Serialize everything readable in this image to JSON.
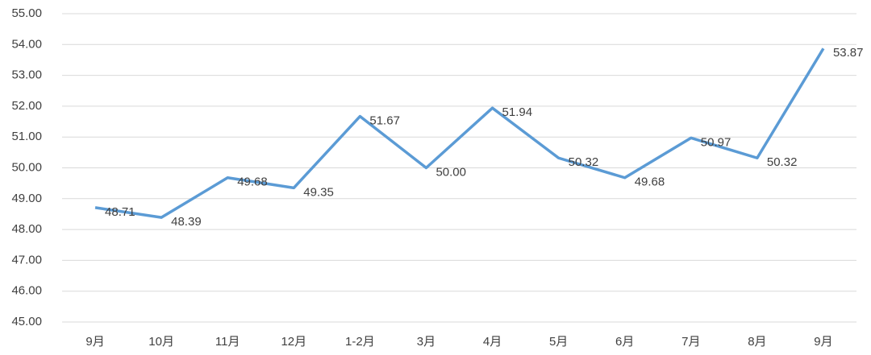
{
  "chart_data": {
    "type": "line",
    "categories": [
      "9月",
      "10月",
      "11月",
      "12月",
      "1-2月",
      "3月",
      "4月",
      "5月",
      "6月",
      "7月",
      "8月",
      "9月"
    ],
    "series": [
      {
        "color": "#5b9bd5",
        "values": [
          48.71,
          48.39,
          49.68,
          49.35,
          51.67,
          50.0,
          51.94,
          50.32,
          49.68,
          50.97,
          50.32,
          53.87
        ],
        "value_labels": [
          "48.71",
          "48.39",
          "49.68",
          "49.35",
          "51.67",
          "50.00",
          "51.94",
          "50.32",
          "49.68",
          "50.97",
          "50.32",
          "53.87"
        ]
      }
    ],
    "ylim": [
      45,
      55
    ],
    "yticks": [
      {
        "value": 45,
        "label": "45.00"
      },
      {
        "value": 46,
        "label": "46.00"
      },
      {
        "value": 47,
        "label": "47.00"
      },
      {
        "value": 48,
        "label": "48.00"
      },
      {
        "value": 49,
        "label": "49.00"
      },
      {
        "value": 50,
        "label": "50.00"
      },
      {
        "value": 51,
        "label": "51.00"
      },
      {
        "value": 52,
        "label": "52.00"
      },
      {
        "value": 53,
        "label": "53.00"
      },
      {
        "value": 54,
        "label": "54.00"
      },
      {
        "value": 55,
        "label": "55.00"
      }
    ],
    "grid": true
  }
}
